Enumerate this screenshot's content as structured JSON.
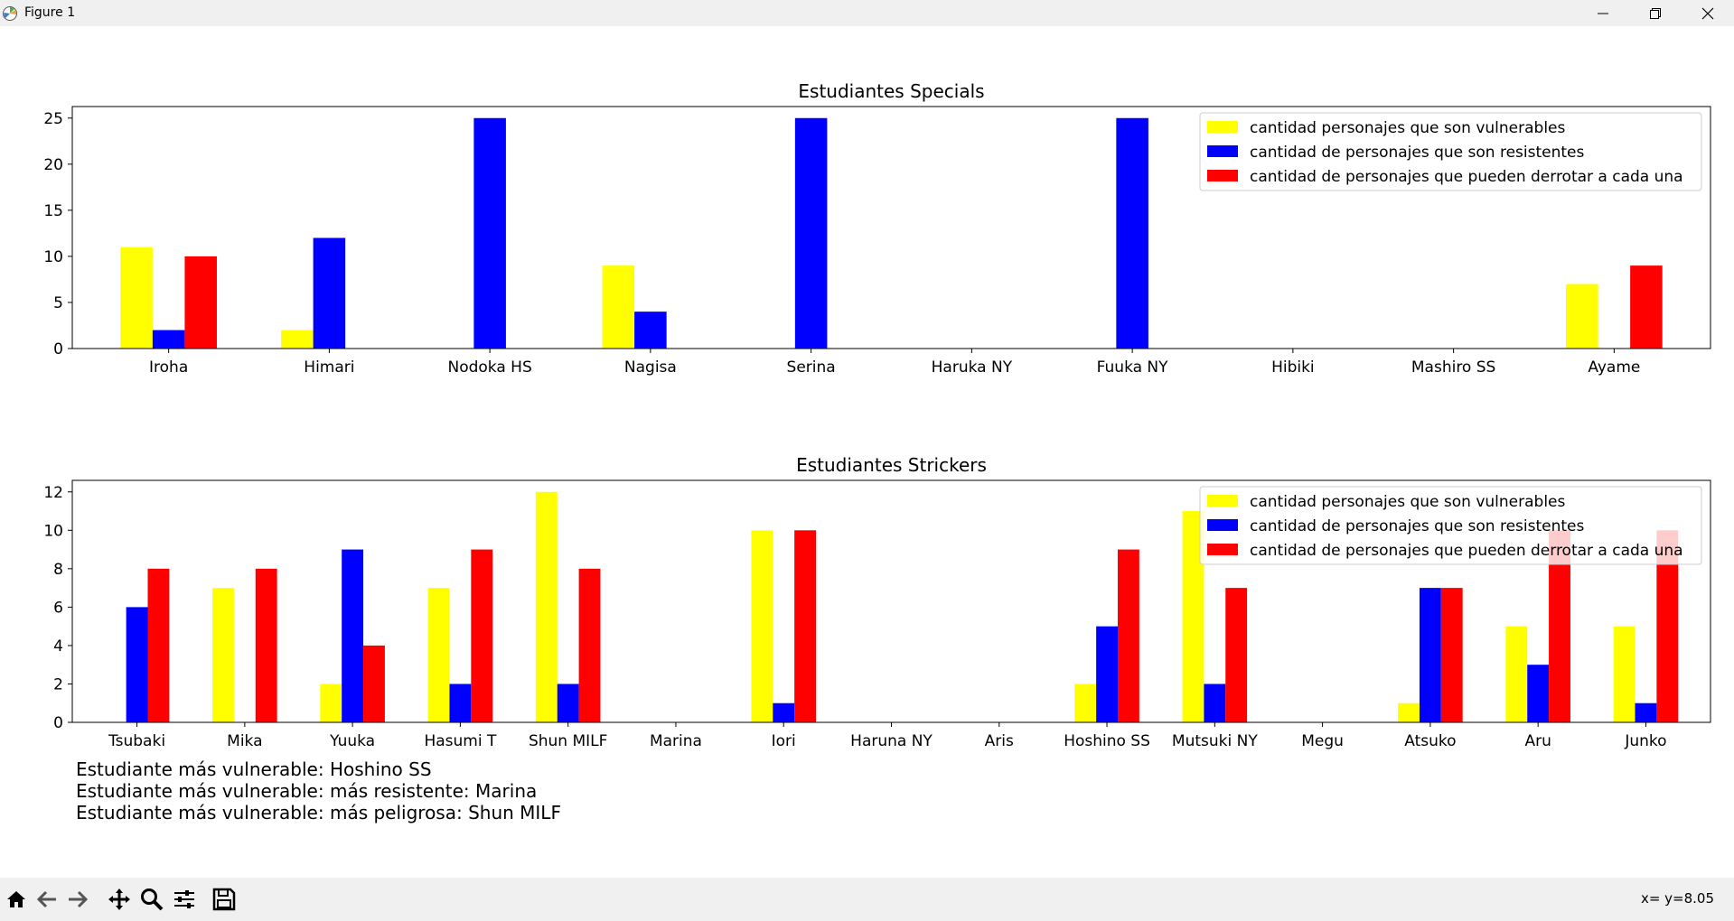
{
  "window": {
    "title": "Figure 1"
  },
  "legend": [
    "cantidad personajes que son vulnerables",
    "cantidad de personajes que son resistentes",
    "cantidad de personajes que pueden derrotar a cada una"
  ],
  "colors": {
    "vulnerable": "#ffff00",
    "resistant": "#0000ff",
    "defeat": "#ff0000"
  },
  "chart_data": [
    {
      "type": "bar",
      "title": "Estudiantes Specials",
      "categories": [
        "Iroha",
        "Himari",
        "Nodoka HS",
        "Nagisa",
        "Serina",
        "Haruka NY",
        "Fuuka NY",
        "Hibiki",
        "Mashiro SS",
        "Ayame"
      ],
      "series": [
        {
          "name": "cantidad personajes que son vulnerables",
          "values": [
            11,
            2,
            0,
            9,
            0,
            0,
            0,
            0,
            0,
            7
          ]
        },
        {
          "name": "cantidad de personajes que son resistentes",
          "values": [
            2,
            12,
            25,
            4,
            25,
            0,
            25,
            0,
            0,
            0
          ]
        },
        {
          "name": "cantidad de personajes que pueden derrotar a cada una",
          "values": [
            10,
            0,
            0,
            0,
            0,
            0,
            0,
            0,
            0,
            9
          ]
        }
      ],
      "ylim": [
        0,
        26.25
      ],
      "yticks": [
        0,
        5,
        10,
        15,
        20,
        25
      ],
      "legend_position": "upper right",
      "grid": false
    },
    {
      "type": "bar",
      "title": "Estudiantes Strickers",
      "categories": [
        "Tsubaki",
        "Mika",
        "Yuuka",
        "Hasumi T",
        "Shun MILF",
        "Marina",
        "Iori",
        "Haruna NY",
        "Aris",
        "Hoshino SS",
        "Mutsuki NY",
        "Megu",
        "Atsuko",
        "Aru",
        "Junko"
      ],
      "series": [
        {
          "name": "cantidad personajes que son vulnerables",
          "values": [
            0,
            7,
            2,
            7,
            12,
            0,
            10,
            0,
            0,
            2,
            11,
            0,
            1,
            5,
            5
          ]
        },
        {
          "name": "cantidad de personajes que son resistentes",
          "values": [
            6,
            0,
            9,
            2,
            2,
            0,
            1,
            0,
            0,
            5,
            2,
            0,
            7,
            3,
            1
          ]
        },
        {
          "name": "cantidad de personajes que pueden derrotar a cada una",
          "values": [
            8,
            8,
            4,
            9,
            8,
            0,
            10,
            0,
            0,
            9,
            7,
            0,
            7,
            10,
            10
          ]
        }
      ],
      "ylim": [
        0,
        12.6
      ],
      "yticks": [
        0,
        2,
        4,
        6,
        8,
        10,
        12
      ],
      "legend_position": "upper right",
      "grid": false
    }
  ],
  "summary": [
    "Estudiante más vulnerable: Hoshino SS",
    "Estudiante más vulnerable: más resistente: Marina",
    "Estudiante más vulnerable: más peligrosa: Shun MILF"
  ],
  "toolbar": {
    "buttons": [
      "home-icon",
      "back-icon",
      "forward-icon",
      "pan-icon",
      "zoom-icon",
      "configure-subplots-icon",
      "save-icon"
    ],
    "coords": "x= y=8.05"
  }
}
